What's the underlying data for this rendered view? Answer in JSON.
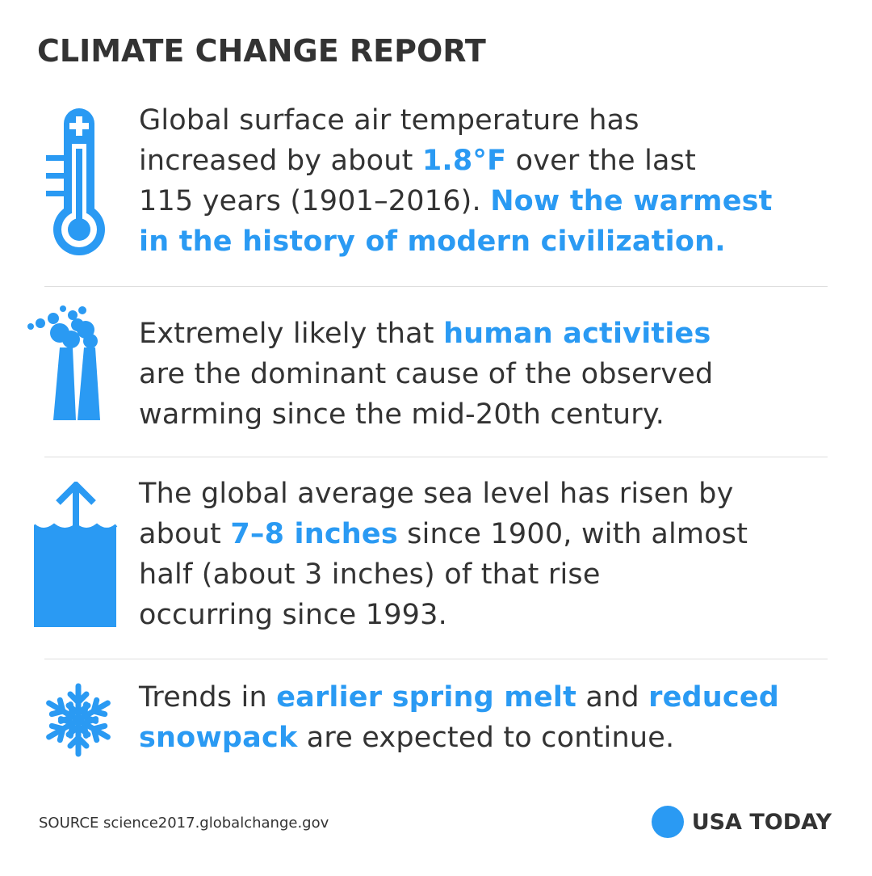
{
  "title": "CLIMATE CHANGE REPORT",
  "accent_color": "#2a9af3",
  "items": [
    {
      "icon": "thermometer-icon",
      "lines": [
        [
          {
            "t": "Global surface air temperature has",
            "h": false
          }
        ],
        [
          {
            "t": "increased by about ",
            "h": false
          },
          {
            "t": "1.8°F",
            "h": true
          },
          {
            "t": " over the last",
            "h": false
          }
        ],
        [
          {
            "t": "115 years (1901–2016). ",
            "h": false
          },
          {
            "t": "Now the warmest",
            "h": true
          }
        ],
        [
          {
            "t": "in the history of modern civilization.",
            "h": true
          }
        ]
      ]
    },
    {
      "icon": "smokestack-icon",
      "lines": [
        [
          {
            "t": "Extremely likely that ",
            "h": false
          },
          {
            "t": "human activities",
            "h": true
          }
        ],
        [
          {
            "t": "are the dominant cause of the observed",
            "h": false
          }
        ],
        [
          {
            "t": "warming since the mid-20th century.",
            "h": false
          }
        ]
      ]
    },
    {
      "icon": "sea-level-rise-icon",
      "lines": [
        [
          {
            "t": "The global average sea level has risen by",
            "h": false
          }
        ],
        [
          {
            "t": "about ",
            "h": false
          },
          {
            "t": "7–8 inches",
            "h": true
          },
          {
            "t": " since 1900, with almost",
            "h": false
          }
        ],
        [
          {
            "t": "half (about 3 inches) of that rise",
            "h": false
          }
        ],
        [
          {
            "t": "occurring since 1993.",
            "h": false
          }
        ]
      ]
    },
    {
      "icon": "snowflake-icon",
      "lines": [
        [
          {
            "t": "Trends in ",
            "h": false
          },
          {
            "t": "earlier spring melt",
            "h": true
          },
          {
            "t": " and ",
            "h": false
          },
          {
            "t": "reduced",
            "h": true
          }
        ],
        [
          {
            "t": "snowpack",
            "h": true
          },
          {
            "t": " are expected to continue.",
            "h": false
          }
        ]
      ]
    }
  ],
  "footer": {
    "source": "SOURCE science2017.globalchange.gov",
    "brand": "USA TODAY"
  }
}
